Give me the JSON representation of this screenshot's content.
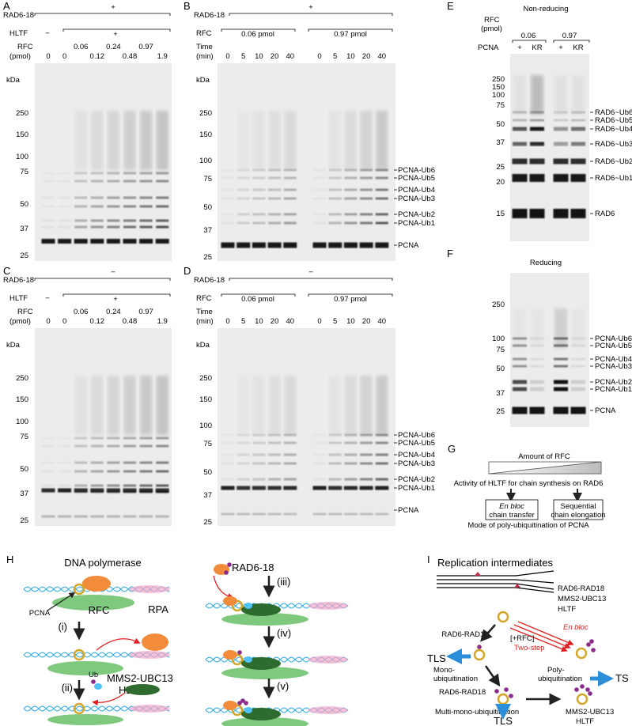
{
  "panels": {
    "A": {
      "label": "A",
      "rad6_18": "RAD6-18",
      "rad6_18_state": "+",
      "hltf": "HLTF",
      "hltf_states": [
        "−",
        "+"
      ],
      "rfc": "RFC",
      "rfc_unit": "(pmol)",
      "lanes": [
        "0",
        "0",
        "0.06",
        "0.12",
        "0.24",
        "0.48",
        "0.97",
        "1.9"
      ],
      "kda": "kDa",
      "markers": [
        "250",
        "150",
        "100",
        "75",
        "50",
        "37",
        "25"
      ]
    },
    "B": {
      "label": "B",
      "rad6_18": "RAD6-18",
      "rad6_18_state": "+",
      "rfc": "RFC",
      "rfc_groups": [
        "0.06 pmol",
        "0.97 pmol"
      ],
      "time": "Time",
      "time_unit": "(min)",
      "times": [
        "0",
        "5",
        "10",
        "20",
        "40",
        "0",
        "5",
        "10",
        "20",
        "40"
      ],
      "kda": "kDa",
      "markers": [
        "250",
        "150",
        "100",
        "75",
        "50",
        "37",
        "25"
      ],
      "bands": [
        "PCNA-Ub6",
        "PCNA-Ub5",
        "PCNA-Ub4",
        "PCNA-Ub3",
        "PCNA-Ub2",
        "PCNA-Ub1",
        "PCNA"
      ]
    },
    "C": {
      "label": "C",
      "rad6_18": "RAD6-18",
      "rad6_18_state": "−",
      "hltf": "HLTF",
      "hltf_states": [
        "−",
        "+"
      ],
      "rfc": "RFC",
      "rfc_unit": "(pmol)",
      "lanes": [
        "0",
        "0",
        "0.06",
        "0.12",
        "0.24",
        "0.48",
        "0.97",
        "1.9"
      ],
      "kda": "kDa",
      "markers": [
        "250",
        "150",
        "100",
        "75",
        "50",
        "37",
        "25"
      ]
    },
    "D": {
      "label": "D",
      "rad6_18": "RAD6-18",
      "rad6_18_state": "−",
      "rfc": "RFC",
      "rfc_groups": [
        "0.06 pmol",
        "0.97 pmol"
      ],
      "time": "Time",
      "time_unit": "(min)",
      "times": [
        "0",
        "5",
        "10",
        "20",
        "40",
        "0",
        "5",
        "10",
        "20",
        "40"
      ],
      "kda": "kDa",
      "markers": [
        "250",
        "150",
        "100",
        "75",
        "50",
        "37",
        "25"
      ],
      "bands": [
        "PCNA-Ub6",
        "PCNA-Ub5",
        "PCNA-Ub4",
        "PCNA-Ub3",
        "PCNA-Ub2",
        "PCNA-Ub1",
        "PCNA"
      ]
    },
    "E": {
      "label": "E",
      "title": "Non-reducing",
      "rfc": "RFC",
      "rfc_unit": "(pmol)",
      "rfc_groups": [
        "0.06",
        "0.97"
      ],
      "pcna": "PCNA",
      "lanes": [
        "+",
        "KR",
        "+",
        "KR"
      ],
      "markers": [
        "250",
        "150",
        "100",
        "75",
        "50",
        "37",
        "25",
        "20",
        "15"
      ],
      "bands": [
        "RAD6~Ub6",
        "RAD6~Ub5",
        "RAD6~Ub4",
        "RAD6~Ub3",
        "RAD6~Ub2",
        "RAD6~Ub1",
        "RAD6"
      ]
    },
    "F": {
      "label": "F",
      "title": "Reducing",
      "markers": [
        "250",
        "100",
        "75",
        "50",
        "37",
        "25"
      ],
      "bands": [
        "PCNA-Ub6",
        "PCNA-Ub5",
        "PCNA-Ub4",
        "PCNA-Ub3",
        "PCNA-Ub2",
        "PCNA-Ub1",
        "PCNA"
      ]
    },
    "G": {
      "label": "G",
      "amount": "Amount of RFC",
      "activity": "Activity of HLTF for chain synthesis on RAD6",
      "en_bloc": [
        "En bloc",
        "chain transfer"
      ],
      "sequential": [
        "Sequential",
        "chain elongation"
      ],
      "mode": "Mode of poly-ubiquitination of PCNA"
    },
    "H": {
      "label": "H",
      "dna_polymerase": "DNA polymerase",
      "pcna": "PCNA",
      "rfc": "RFC",
      "rpa": "RPA",
      "steps": [
        "(i)",
        "(ii)",
        "(iii)",
        "(iv)",
        "(v)"
      ],
      "ub": "Ub",
      "mms2_ubc13": "MMS2-UBC13",
      "hltf": "HLTF",
      "rad6_18": "RAD6-18"
    },
    "I": {
      "label": "I",
      "replication": "Replication intermediates",
      "rad6_rad18": "RAD6-RAD18",
      "mms2_ubc13": "MMS2-UBC13",
      "hltf": "HLTF",
      "en_bloc": "En bloc",
      "plus_rfc": "[+RFC]",
      "two_step": "Two-step",
      "rad6_rad18_mono": "RAD6-RAD18",
      "tls": "TLS",
      "mono": [
        "Mono-",
        "ubiquitination"
      ],
      "poly": [
        "Poly-",
        "ubiquitination"
      ],
      "ts": "TS",
      "rad6_rad18_multi": "RAD6-RAD18",
      "multi_mono": "Multi-mono-ubiquitination",
      "mms2_ubc13_2": "MMS2-UBC13",
      "hltf_2": "HLTF",
      "tls_2": "TLS"
    }
  }
}
